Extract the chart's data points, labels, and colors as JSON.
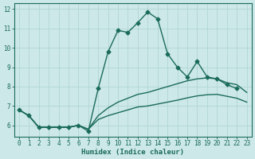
{
  "xlabel": "Humidex (Indice chaleur)",
  "xlim": [
    -0.5,
    23.5
  ],
  "ylim": [
    5.4,
    12.3
  ],
  "yticks": [
    6,
    7,
    8,
    9,
    10,
    11,
    12
  ],
  "xticks": [
    0,
    1,
    2,
    3,
    4,
    5,
    6,
    7,
    8,
    9,
    10,
    11,
    12,
    13,
    14,
    15,
    16,
    17,
    18,
    19,
    20,
    21,
    22,
    23
  ],
  "background_color": "#cde8e8",
  "grid_color": "#b0d5d5",
  "line_color": "#1a6b5a",
  "series": [
    {
      "x": [
        0,
        1,
        2,
        3,
        4,
        5,
        6,
        7,
        8,
        9,
        10,
        11,
        12,
        13,
        14,
        15,
        16,
        17,
        18,
        19,
        20,
        21,
        22
      ],
      "y": [
        6.8,
        6.5,
        5.9,
        5.9,
        5.9,
        5.9,
        6.0,
        5.7,
        7.9,
        9.8,
        10.9,
        10.8,
        11.3,
        11.85,
        11.5,
        9.7,
        9.0,
        8.5,
        9.3,
        8.5,
        8.4,
        8.1,
        7.9
      ],
      "marker": "D",
      "markersize": 2.5,
      "linewidth": 1.0
    },
    {
      "x": [
        0,
        1,
        2,
        3,
        4,
        5,
        6,
        7,
        8,
        9,
        10,
        11,
        12,
        13,
        14,
        15,
        16,
        17,
        18,
        19,
        20,
        21,
        22,
        23
      ],
      "y": [
        6.8,
        6.5,
        5.9,
        5.9,
        5.9,
        5.9,
        6.0,
        5.8,
        6.5,
        6.9,
        7.2,
        7.4,
        7.6,
        7.7,
        7.85,
        8.0,
        8.15,
        8.3,
        8.4,
        8.45,
        8.4,
        8.2,
        8.1,
        7.7
      ],
      "marker": null,
      "markersize": 0,
      "linewidth": 1.0
    },
    {
      "x": [
        0,
        1,
        2,
        3,
        4,
        5,
        6,
        7,
        8,
        9,
        10,
        11,
        12,
        13,
        14,
        15,
        16,
        17,
        18,
        19,
        20,
        21,
        22,
        23
      ],
      "y": [
        6.8,
        6.5,
        5.9,
        5.9,
        5.9,
        5.9,
        6.0,
        5.8,
        6.3,
        6.5,
        6.65,
        6.8,
        6.95,
        7.0,
        7.1,
        7.2,
        7.3,
        7.42,
        7.52,
        7.58,
        7.6,
        7.5,
        7.4,
        7.2
      ],
      "marker": null,
      "markersize": 0,
      "linewidth": 1.0
    }
  ]
}
